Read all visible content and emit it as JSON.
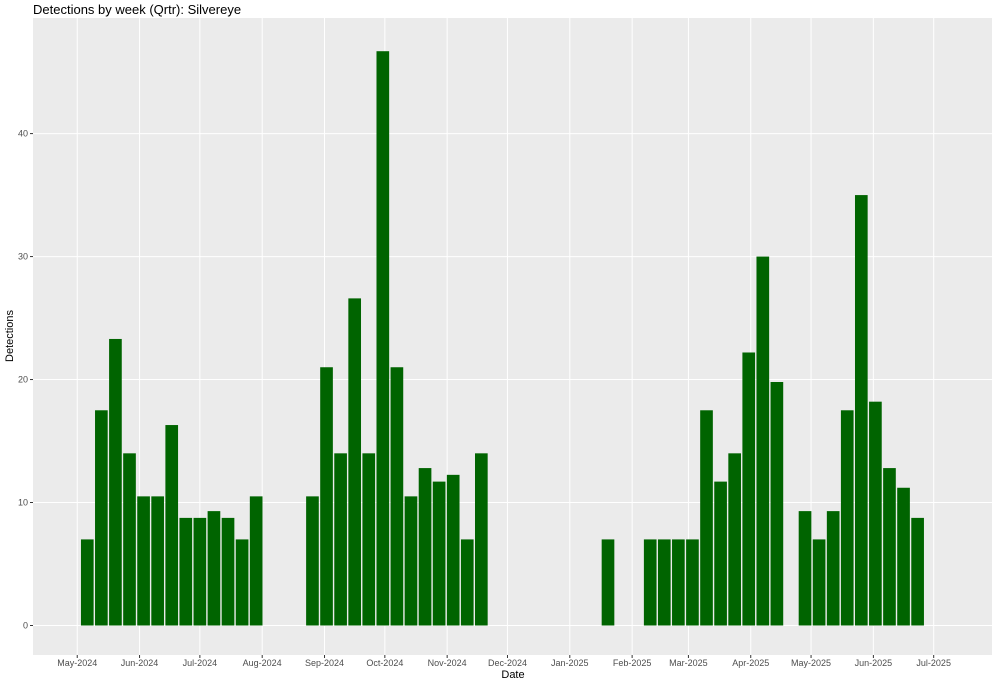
{
  "chart_data": {
    "type": "bar",
    "title": "Detections by week (Qrtr): Silvereye",
    "x_label": "Date",
    "y_label": "Detections",
    "color": "#006400",
    "grid": true,
    "x": [
      "2024-05-06",
      "2024-05-13",
      "2024-05-20",
      "2024-05-27",
      "2024-06-03",
      "2024-06-10",
      "2024-06-17",
      "2024-06-24",
      "2024-07-01",
      "2024-07-08",
      "2024-07-15",
      "2024-07-22",
      "2024-07-29",
      "2024-08-26",
      "2024-09-02",
      "2024-09-09",
      "2024-09-16",
      "2024-09-23",
      "2024-09-30",
      "2024-10-07",
      "2024-10-14",
      "2024-10-21",
      "2024-10-28",
      "2024-11-04",
      "2024-11-11",
      "2024-11-18",
      "2025-01-20",
      "2025-02-10",
      "2025-02-17",
      "2025-02-24",
      "2025-03-03",
      "2025-03-10",
      "2025-03-17",
      "2025-03-24",
      "2025-03-31",
      "2025-04-07",
      "2025-04-14",
      "2025-04-28",
      "2025-05-05",
      "2025-05-12",
      "2025-05-19",
      "2025-05-26",
      "2025-06-02",
      "2025-06-09",
      "2025-06-16",
      "2025-06-23"
    ],
    "values": [
      7,
      17.5,
      23.3,
      14,
      10.5,
      10.5,
      16.3,
      8.75,
      8.75,
      9.3,
      8.75,
      7,
      10.5,
      10.5,
      21,
      14,
      26.6,
      14,
      46.7,
      21,
      10.5,
      12.8,
      11.7,
      12.25,
      7,
      14,
      7,
      7,
      7,
      7,
      7,
      17.5,
      11.7,
      14,
      22.2,
      30,
      19.8,
      9.3,
      7,
      9.3,
      17.5,
      35,
      18.2,
      12.8,
      11.2,
      8.75
    ],
    "xlim": [
      "2024-04-09",
      "2025-07-30"
    ],
    "xticks": [
      {
        "value": "2024-05-01",
        "label": "May-2024"
      },
      {
        "value": "2024-06-01",
        "label": "Jun-2024"
      },
      {
        "value": "2024-07-01",
        "label": "Jul-2024"
      },
      {
        "value": "2024-08-01",
        "label": "Aug-2024"
      },
      {
        "value": "2024-09-01",
        "label": "Sep-2024"
      },
      {
        "value": "2024-10-01",
        "label": "Oct-2024"
      },
      {
        "value": "2024-11-01",
        "label": "Nov-2024"
      },
      {
        "value": "2024-12-01",
        "label": "Dec-2024"
      },
      {
        "value": "2025-01-01",
        "label": "Jan-2025"
      },
      {
        "value": "2025-02-01",
        "label": "Feb-2025"
      },
      {
        "value": "2025-03-01",
        "label": "Mar-2025"
      },
      {
        "value": "2025-04-01",
        "label": "Apr-2025"
      },
      {
        "value": "2025-05-01",
        "label": "May-2025"
      },
      {
        "value": "2025-06-01",
        "label": "Jun-2025"
      },
      {
        "value": "2025-07-01",
        "label": "Jul-2025"
      }
    ],
    "ylim": [
      -2.4,
      49.4
    ],
    "yticks": [
      0,
      10,
      20,
      30,
      40
    ]
  }
}
